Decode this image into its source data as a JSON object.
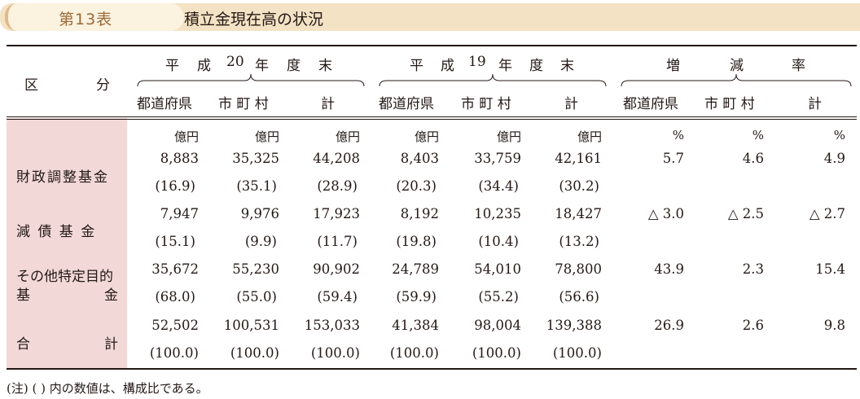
{
  "title": {
    "number": "第13表",
    "text": "積立金現在高の状況"
  },
  "header": {
    "kubun": [
      "区",
      "分"
    ],
    "groups": [
      [
        "平",
        "成",
        "20",
        "年",
        "度",
        "末"
      ],
      [
        "平",
        "成",
        "19",
        "年",
        "度",
        "末"
      ],
      [
        "増",
        "減",
        "率"
      ]
    ],
    "sub_columns": [
      "都道府県",
      "市 町 村",
      "計",
      "都道府県",
      "市 町 村",
      "計",
      "都道府県",
      "市 町 村",
      "計"
    ]
  },
  "units": [
    "億円",
    "億円",
    "億円",
    "億円",
    "億円",
    "億円",
    "%",
    "%",
    "%"
  ],
  "rows": [
    {
      "label": "財政調整基金",
      "values": [
        "8,883",
        "35,325",
        "44,208",
        "8,403",
        "33,759",
        "42,161",
        "5.7",
        "4.6",
        "4.9"
      ],
      "ratios": [
        "(16.9)",
        "(35.1)",
        "(28.9)",
        "(20.3)",
        "(34.4)",
        "(30.2)"
      ]
    },
    {
      "label": "減 債 基 金",
      "values": [
        "7,947",
        "9,976",
        "17,923",
        "8,192",
        "10,235",
        "18,427",
        "△ 3.0",
        "△ 2.5",
        "△ 2.7"
      ],
      "ratios": [
        "(15.1)",
        "(9.9)",
        "(11.7)",
        "(19.8)",
        "(10.4)",
        "(13.2)"
      ]
    },
    {
      "label": "その他特定目的",
      "label2a": "基",
      "label2b": "金",
      "values": [
        "35,672",
        "55,230",
        "90,902",
        "24,789",
        "54,010",
        "78,800",
        "43.9",
        "2.3",
        "15.4"
      ],
      "ratios": [
        "(68.0)",
        "(55.0)",
        "(59.4)",
        "(59.9)",
        "(55.2)",
        "(56.6)"
      ]
    },
    {
      "label": "合",
      "label_b": "計",
      "values": [
        "52,502",
        "100,531",
        "153,033",
        "41,384",
        "98,004",
        "139,388",
        "26.9",
        "2.6",
        "9.8"
      ],
      "ratios": [
        "(100.0)",
        "(100.0)",
        "(100.0)",
        "(100.0)",
        "(100.0)",
        "(100.0)"
      ]
    }
  ],
  "note": "(注)  (   ) 内の数値は、構成比である。"
}
